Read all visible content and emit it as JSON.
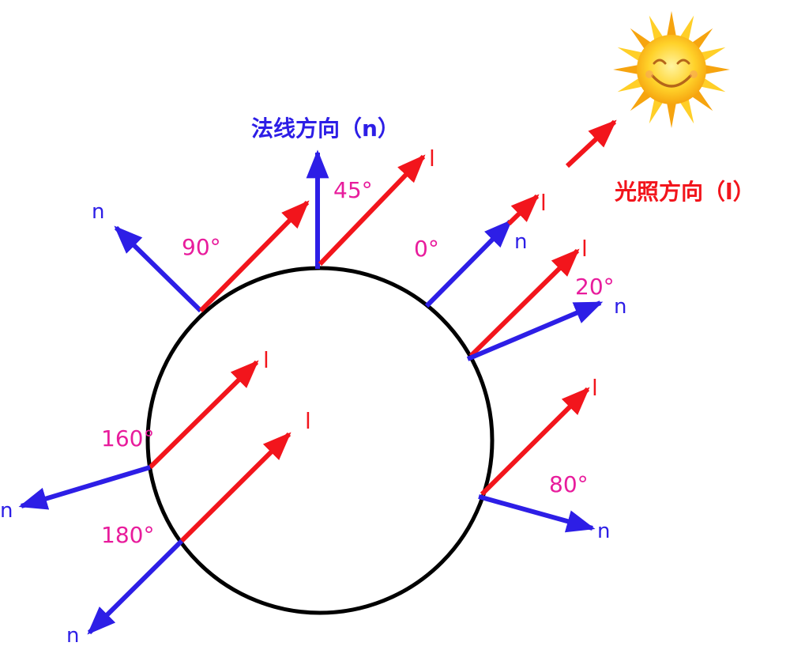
{
  "colors": {
    "normal": "#2d1ee6",
    "light": "#f2151c",
    "angle": "#e81c9c",
    "circle": "#000000",
    "sun_core": "#ffd22a",
    "sun_ray": "#f6a40f"
  },
  "titles": {
    "normal": "法线方向（n）",
    "light": "光照方向（l）"
  },
  "labels": {
    "normal": "n",
    "light": "l"
  },
  "angles": [
    "90°",
    "45°",
    "0°",
    "20°",
    "160°",
    "180°",
    "80°"
  ],
  "icons": {
    "sun": "smiling-sun-icon"
  }
}
